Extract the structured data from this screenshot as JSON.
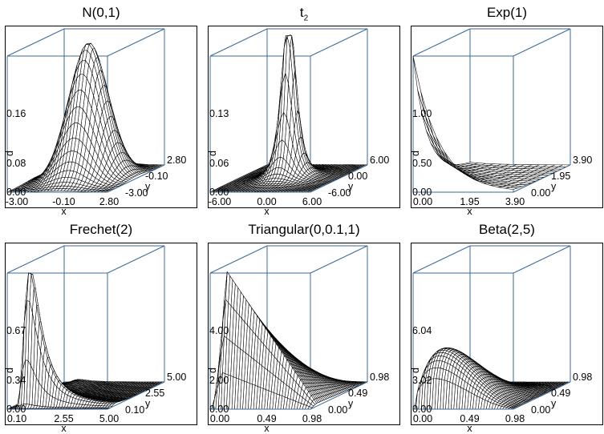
{
  "chart_data": [
    {
      "type": "surface3d",
      "title": "N(0,1)",
      "title_main": "N(0,1)",
      "title_sub": "",
      "xlabel": "x",
      "ylabel": "y",
      "xticks": [
        "-3.00",
        "-0.10",
        "2.80"
      ],
      "yticks": [
        "-3.00",
        "-0.10",
        "2.80"
      ],
      "zticks": [
        "0.00",
        "0.08",
        "0.16"
      ],
      "z_axis_label": "d",
      "xlim": [
        -3.0,
        2.8
      ],
      "ylim": [
        -3.0,
        2.8
      ],
      "zlim": [
        0.0,
        0.16
      ],
      "surface": "exp(-(x^2+y^2)/2)/(2*pi)",
      "peak": 0.159
    },
    {
      "type": "surface3d",
      "title": "t2",
      "title_main": "t",
      "title_sub": "2",
      "xlabel": "x",
      "ylabel": "y",
      "xticks": [
        "-6.00",
        "0.00",
        "6.00"
      ],
      "yticks": [
        "-6.00",
        "0.00",
        "6.00"
      ],
      "zticks": [
        "0.00",
        "0.06",
        "0.13"
      ],
      "z_axis_label": "d",
      "xlim": [
        -6.0,
        6.0
      ],
      "ylim": [
        -6.0,
        6.0
      ],
      "zlim": [
        0.0,
        0.13
      ],
      "surface": "bivariate t, 2 df",
      "peak": 0.159
    },
    {
      "type": "surface3d",
      "title": "Exp(1)",
      "title_main": "Exp(1)",
      "title_sub": "",
      "xlabel": "x",
      "ylabel": "y",
      "xticks": [
        "0.00",
        "1.95",
        "3.90"
      ],
      "yticks": [
        "0.00",
        "1.95",
        "3.90"
      ],
      "zticks": [
        "0.00",
        "0.50",
        "1.00"
      ],
      "z_axis_label": "d",
      "xlim": [
        0.0,
        3.9
      ],
      "ylim": [
        0.0,
        3.9
      ],
      "zlim": [
        0.0,
        1.0
      ],
      "surface": "exp(-x-y)",
      "peak": 1.0
    },
    {
      "type": "surface3d",
      "title": "Frechet(2)",
      "title_main": "Frechet(2)",
      "title_sub": "",
      "xlabel": "x",
      "ylabel": "y",
      "xticks": [
        "0.10",
        "2.55",
        "5.00"
      ],
      "yticks": [
        "0.10",
        "2.55",
        "5.00"
      ],
      "zticks": [
        "0.00",
        "0.34",
        "0.67"
      ],
      "z_axis_label": "d",
      "xlim": [
        0.1,
        5.0
      ],
      "ylim": [
        0.1,
        5.0
      ],
      "zlim": [
        0.0,
        0.67
      ],
      "surface": "Frechet(2) density",
      "peak": 0.67
    },
    {
      "type": "surface3d",
      "title": "Triangular(0,0.1,1)",
      "title_main": "Triangular(0,0.1,1)",
      "title_sub": "",
      "xlabel": "x",
      "ylabel": "y",
      "xticks": [
        "0.00",
        "0.49",
        "0.98"
      ],
      "yticks": [
        "0.00",
        "0.49",
        "0.98"
      ],
      "zticks": [
        "0.00",
        "2.00",
        "4.00"
      ],
      "z_axis_label": "d",
      "xlim": [
        0.0,
        0.98
      ],
      "ylim": [
        0.0,
        0.98
      ],
      "zlim": [
        0.0,
        4.0
      ],
      "surface": "triangular density, mode 0.1",
      "peak": 4.0
    },
    {
      "type": "surface3d",
      "title": "Beta(2,5)",
      "title_main": "Beta(2,5)",
      "title_sub": "",
      "xlabel": "x",
      "ylabel": "y",
      "xticks": [
        "0.00",
        "0.49",
        "0.98"
      ],
      "yticks": [
        "0.00",
        "0.49",
        "0.98"
      ],
      "zticks": [
        "0.00",
        "3.02",
        "6.04"
      ],
      "z_axis_label": "d",
      "xlim": [
        0.0,
        0.98
      ],
      "ylim": [
        0.0,
        0.98
      ],
      "zlim": [
        0.0,
        6.04
      ],
      "surface": "Beta(2,5) density",
      "peak": 6.04
    }
  ],
  "style": {
    "box_color": "#3d6a94",
    "mesh_color": "#000000",
    "mesh_fill": "#ffffff",
    "frame_color": "#000000"
  }
}
